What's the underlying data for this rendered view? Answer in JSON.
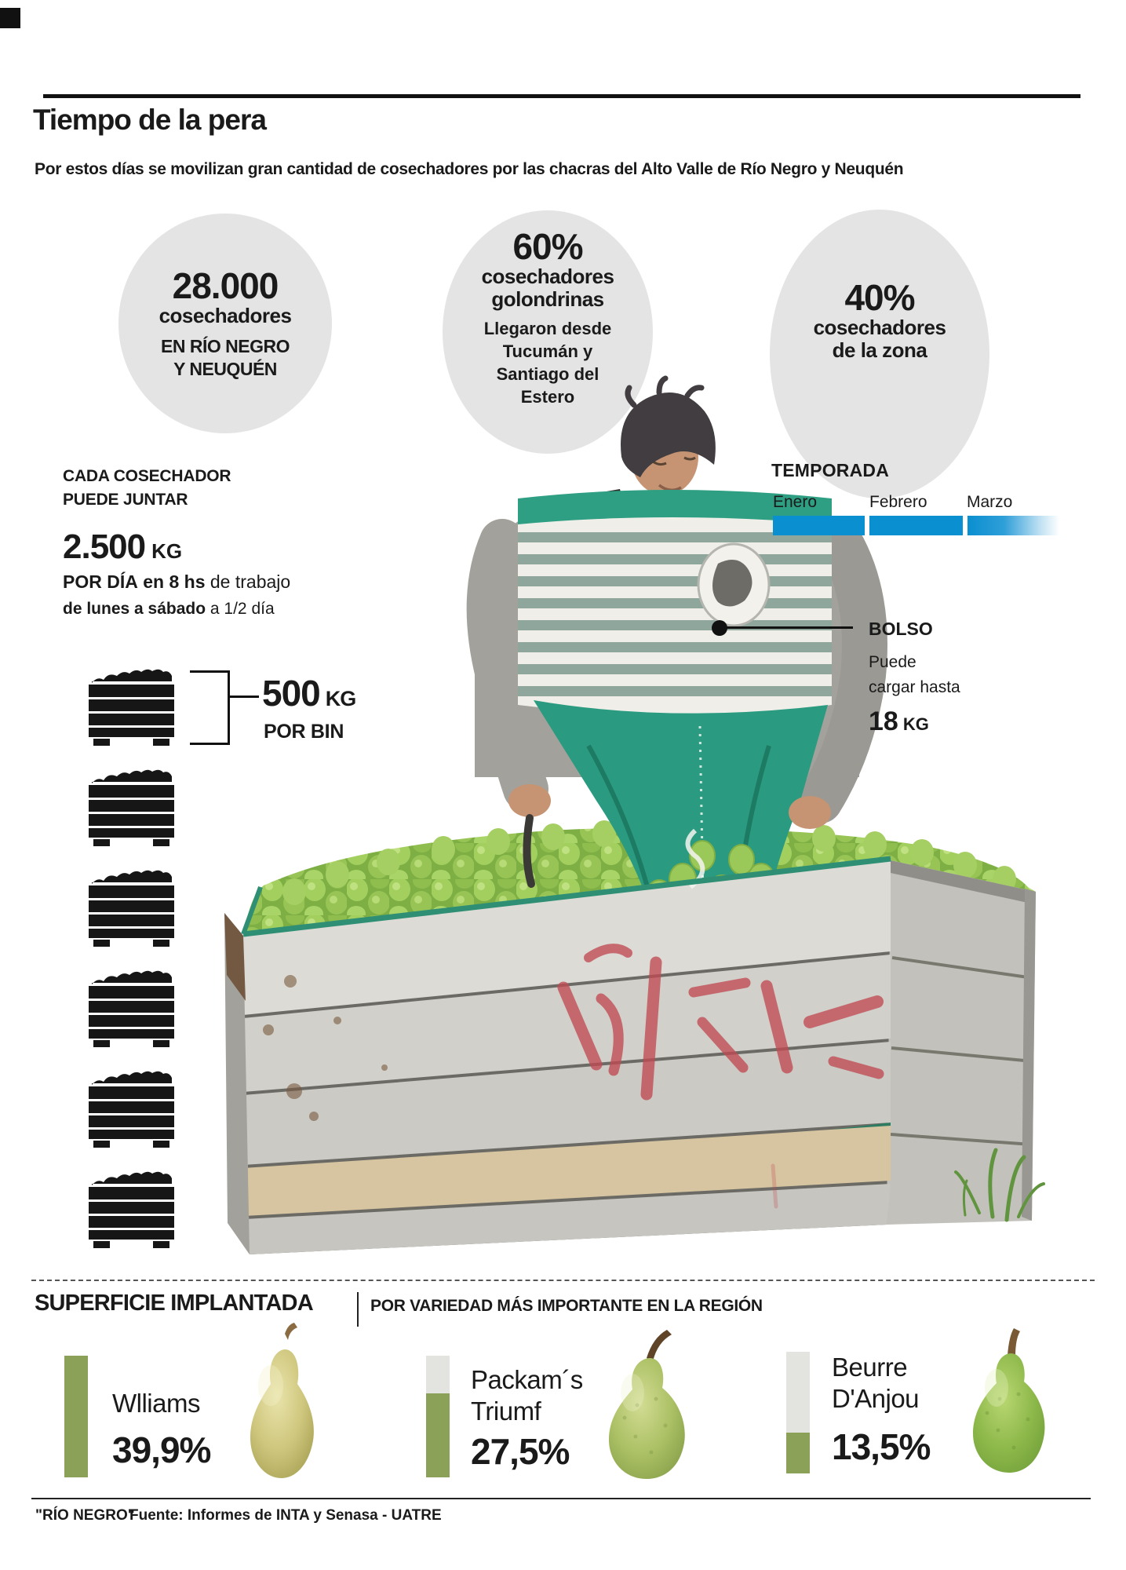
{
  "header": {
    "title": "Tiempo de la pera",
    "subtitle": "Por estos días se movilizan gran cantidad de cosechadores por las chacras del Alto Valle de Río Negro y Neuquén"
  },
  "circles": [
    {
      "value": "28.000",
      "label": "cosechadores",
      "sublabel": "EN RÍO NEGRO\nY NEUQUÉN",
      "desc": ""
    },
    {
      "value": "60%",
      "label": "cosechadores\ngolondrinas",
      "sublabel": "",
      "desc": "Llegaron desde\nTucumán y\nSantiago del\nEstero"
    },
    {
      "value": "40%",
      "label": "cosechadores\nde la zona",
      "sublabel": "",
      "desc": ""
    }
  ],
  "harvester": {
    "heading": "CADA COSECHADOR\nPUEDE JUNTAR",
    "amount": "2.500",
    "unit": "KG",
    "detail_bold": "POR DÍA",
    "detail_mid": "en 8 hs",
    "detail_rest": "de trabajo",
    "schedule_bold": "de lunes a sábado",
    "schedule_rest": "a 1/2 día"
  },
  "temporada": {
    "title": "TEMPORADA",
    "months": [
      "Enero",
      "Febrero",
      "Marzo"
    ],
    "bar_color": "#0a8fd0",
    "note": "Marzo bar fades out"
  },
  "bolso": {
    "title": "BOLSO",
    "desc": "Puede\ncargar hasta",
    "amount": "18",
    "unit": "KG"
  },
  "bin": {
    "amount": "500",
    "unit": "KG",
    "label": "POR BIN",
    "icon_count": 6
  },
  "superficie": {
    "title": "SUPERFICIE IMPLANTADA",
    "subtitle": "POR VARIEDAD MÁS IMPORTANTE EN LA REGIÓN",
    "max_value": 39.9,
    "bar_green": "#8ba157",
    "bar_gray": "#e3e3df",
    "items": [
      {
        "name": "Wlliams",
        "value": 39.9,
        "value_label": "39,9%"
      },
      {
        "name": "Packam´s\nTriumf",
        "value": 27.5,
        "value_label": "27,5%"
      },
      {
        "name": "Beurre\nD'Anjou",
        "value": 13.5,
        "value_label": "13,5%"
      }
    ]
  },
  "footer": {
    "credit": "\"RÍO NEGRO\"",
    "source": "Fuente: Informes de INTA y Senasa - UATRE"
  },
  "colors": {
    "accent_blue": "#0a8fd0",
    "olive_green": "#8ba157",
    "circle_gray": "#e4e4e4",
    "bolso_teal": "#2f9f83"
  },
  "chart_data": [
    {
      "type": "bar",
      "title": "SUPERFICIE IMPLANTADA",
      "subtitle": "POR VARIEDAD MÁS IMPORTANTE EN LA REGIÓN",
      "categories": [
        "Wlliams",
        "Packam´s Triumf",
        "Beurre D'Anjou"
      ],
      "values": [
        39.9,
        27.5,
        13.5
      ],
      "unit": "%",
      "ylim": [
        0,
        39.9
      ]
    },
    {
      "type": "bar",
      "title": "TEMPORADA",
      "categories": [
        "Enero",
        "Febrero",
        "Marzo"
      ],
      "values": [
        100,
        100,
        60
      ],
      "note": "timeline bars; Marzo fades to white indicating season tapering"
    }
  ]
}
